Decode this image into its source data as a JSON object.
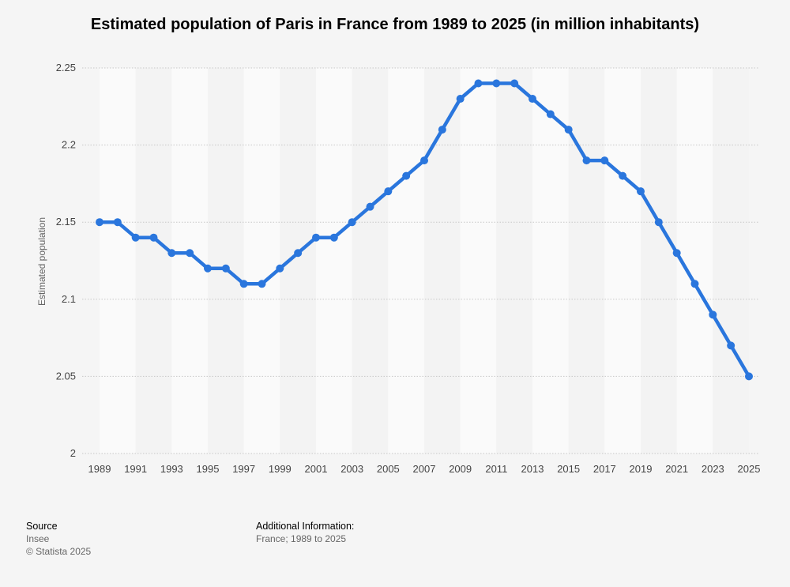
{
  "chart_data": {
    "type": "line",
    "title": "Estimated population of Paris in France from 1989 to 2025 (in million inhabitants)",
    "xlabel": "",
    "ylabel": "Estimated population",
    "ylim": [
      2,
      2.25
    ],
    "yticks": [
      "2",
      "2.05",
      "2.1",
      "2.15",
      "2.2",
      "2.25"
    ],
    "ytick_values": [
      2,
      2.05,
      2.1,
      2.15,
      2.2,
      2.25
    ],
    "xtick_labels": [
      "1989",
      "1991",
      "1993",
      "1995",
      "1997",
      "1999",
      "2001",
      "2003",
      "2005",
      "2007",
      "2009",
      "2011",
      "2013",
      "2015",
      "2017",
      "2019",
      "2021",
      "2023",
      "2025"
    ],
    "grid": true,
    "series": [
      {
        "name": "Estimated population",
        "color": "#2a76dd",
        "x": [
          1989,
          1990,
          1991,
          1992,
          1993,
          1994,
          1995,
          1996,
          1997,
          1998,
          1999,
          2000,
          2001,
          2002,
          2003,
          2004,
          2005,
          2006,
          2007,
          2008,
          2009,
          2010,
          2011,
          2012,
          2013,
          2014,
          2015,
          2016,
          2017,
          2018,
          2019,
          2020,
          2021,
          2022,
          2023,
          2024,
          2025
        ],
        "values": [
          2.15,
          2.15,
          2.14,
          2.14,
          2.13,
          2.13,
          2.12,
          2.12,
          2.11,
          2.11,
          2.12,
          2.13,
          2.14,
          2.14,
          2.15,
          2.16,
          2.17,
          2.18,
          2.19,
          2.21,
          2.23,
          2.24,
          2.24,
          2.24,
          2.23,
          2.22,
          2.21,
          2.19,
          2.19,
          2.18,
          2.17,
          2.15,
          2.13,
          2.11,
          2.09,
          2.07,
          2.05
        ]
      }
    ]
  },
  "footer": {
    "source_heading": "Source",
    "source_value": "Insee",
    "copyright": "© Statista 2025",
    "additional_heading": "Additional Information:",
    "additional_value": "France; 1989 to 2025"
  }
}
